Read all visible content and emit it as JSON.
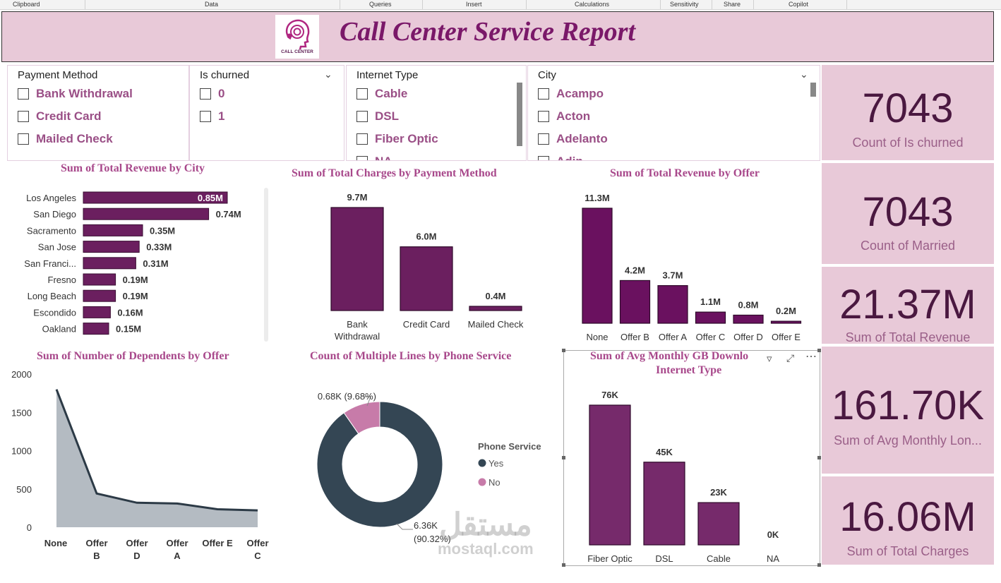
{
  "ribbon": [
    "Clipboard",
    "Data",
    "Queries",
    "Insert",
    "Calculations",
    "Sensitivity",
    "Share",
    "Copilot"
  ],
  "header": {
    "title": "Call Center Service Report",
    "logo_text": "CALL CENTER"
  },
  "slicers": {
    "payment": {
      "title": "Payment Method",
      "options": [
        "Bank Withdrawal",
        "Credit Card",
        "Mailed Check"
      ]
    },
    "churned": {
      "title": "Is churned",
      "options": [
        "0",
        "1"
      ]
    },
    "internet": {
      "title": "Internet Type",
      "options": [
        "Cable",
        "DSL",
        "Fiber Optic",
        "NA"
      ]
    },
    "city": {
      "title": "City",
      "options": [
        "Acampo",
        "Acton",
        "Adelanto",
        "Adin"
      ]
    }
  },
  "kpis": [
    {
      "value": "7043",
      "label": "Count of Is churned"
    },
    {
      "value": "7043",
      "label": "Count of Married"
    },
    {
      "value": "21.37M",
      "label": "Sum of Total Revenue"
    },
    {
      "value": "161.70K",
      "label": "Sum of Avg Monthly Lon..."
    },
    {
      "value": "16.06M",
      "label": "Sum of Total Charges"
    }
  ],
  "colors": {
    "accent": "#6b1f5f",
    "header_bg": "#e8c9d8",
    "title": "#7a1869",
    "donut_yes": "#344654",
    "donut_no": "#c77ba9",
    "area": "#a7afb7"
  },
  "watermark": {
    "arabic": "مستقل",
    "latin": "mostaql.com"
  },
  "chart_data": [
    {
      "type": "bar",
      "orientation": "horizontal",
      "title": "Sum of Total Revenue by City",
      "categories": [
        "Los Angeles",
        "San Diego",
        "Sacramento",
        "San Jose",
        "San Franci...",
        "Fresno",
        "Long Beach",
        "Escondido",
        "Oakland"
      ],
      "values": [
        0.85,
        0.74,
        0.35,
        0.33,
        0.31,
        0.19,
        0.19,
        0.16,
        0.15
      ],
      "labels": [
        "0.85M",
        "0.74M",
        "0.35M",
        "0.33M",
        "0.31M",
        "0.19M",
        "0.19M",
        "0.16M",
        "0.15M"
      ],
      "unit": "M"
    },
    {
      "type": "bar",
      "title": "Sum of Total Charges by Payment Method",
      "categories": [
        "Bank Withdrawal",
        "Credit Card",
        "Mailed Check"
      ],
      "values": [
        9.7,
        6.0,
        0.4
      ],
      "labels": [
        "9.7M",
        "6.0M",
        "0.4M"
      ],
      "unit": "M"
    },
    {
      "type": "bar",
      "title": "Sum of Total Revenue by Offer",
      "categories": [
        "None",
        "Offer B",
        "Offer A",
        "Offer C",
        "Offer D",
        "Offer E"
      ],
      "values": [
        11.3,
        4.2,
        3.7,
        1.1,
        0.8,
        0.2
      ],
      "labels": [
        "11.3M",
        "4.2M",
        "3.7M",
        "1.1M",
        "0.8M",
        "0.2M"
      ],
      "unit": "M"
    },
    {
      "type": "area",
      "title": "Sum of Number of Dependents by Offer",
      "categories": [
        "None",
        "Offer B",
        "Offer D",
        "Offer A",
        "Offer E",
        "Offer C"
      ],
      "values": [
        1800,
        440,
        320,
        310,
        235,
        220
      ],
      "ylim": [
        0,
        2000
      ],
      "yticks": [
        0,
        500,
        1000,
        1500,
        2000
      ],
      "grid": false
    },
    {
      "type": "pie",
      "hole": true,
      "title": "Count of Multiple Lines by Phone Service",
      "legend_title": "Phone Service",
      "series": [
        {
          "name": "Yes",
          "value": 6.36,
          "label": "6.36K",
          "percent": "(90.32%)"
        },
        {
          "name": "No",
          "value": 0.68,
          "label": "0.68K",
          "percent": "(9.68%)"
        }
      ],
      "legend": "right"
    },
    {
      "type": "bar",
      "title_line1": "Sum of Avg Monthly GB Downlo",
      "title_line2": "Internet Type",
      "categories": [
        "Fiber Optic",
        "DSL",
        "Cable",
        "NA"
      ],
      "values": [
        76,
        45,
        23,
        0
      ],
      "labels": [
        "76K",
        "45K",
        "23K",
        "0K"
      ],
      "unit": "K"
    }
  ]
}
